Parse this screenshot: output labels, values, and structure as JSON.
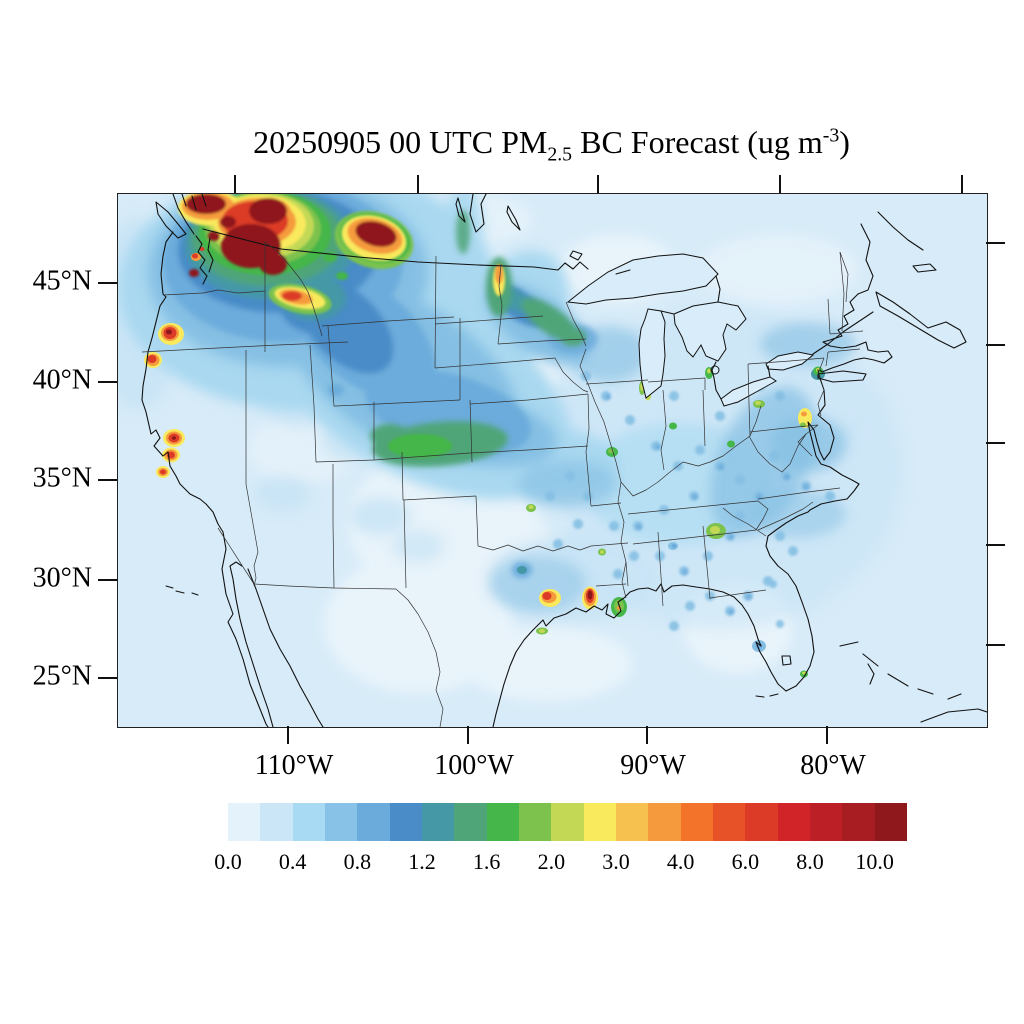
{
  "title": {
    "prefix": "20250905 00 UTC PM",
    "subscript": "2.5",
    "middle": " BC Forecast (ug m",
    "superscript": "-3",
    "suffix": ")"
  },
  "map": {
    "y_axis": {
      "labels": [
        "45°N",
        "40°N",
        "35°N",
        "30°N",
        "25°N"
      ],
      "left_tick_y": [
        283,
        382,
        480,
        580,
        678
      ],
      "right_tick_y": [
        243,
        345,
        443,
        545,
        645
      ]
    },
    "x_axis": {
      "labels": [
        "110°W",
        "100°W",
        "90°W",
        "80°W"
      ],
      "bottom_tick_x": [
        288,
        468,
        647,
        827
      ],
      "top_tick_x": [
        235,
        418,
        598,
        780,
        962
      ]
    }
  },
  "colorbar": {
    "labels": [
      "0.0",
      "0.4",
      "0.8",
      "1.2",
      "1.6",
      "2.0",
      "3.0",
      "4.0",
      "6.0",
      "8.0",
      "10.0"
    ],
    "label_boundary_index": [
      0,
      2,
      4,
      6,
      8,
      10,
      12,
      14,
      16,
      18,
      20
    ],
    "colors": [
      "#E4F2FB",
      "#CBE7F7",
      "#A8DBF3",
      "#88C2E7",
      "#6BABDB",
      "#4A8CC8",
      "#4598A6",
      "#4FA578",
      "#45B64A",
      "#7CC24D",
      "#C3D956",
      "#F9E95D",
      "#F7C150",
      "#F59B3D",
      "#F4732B",
      "#E85229",
      "#DC3B27",
      "#D02428",
      "#BC2026",
      "#A81D22",
      "#8E181C"
    ]
  },
  "chart_data": {
    "type": "heatmap",
    "subtype": "filled_contour_forecast_map",
    "title": "20250905 00 UTC PM2.5 BC Forecast (ug m-3)",
    "variable": "PM2.5 black carbon (BC) surface concentration",
    "units": "ug m-3",
    "forecast_time": "20250905 00 UTC",
    "region": "Contiguous United States with coastlines and state borders",
    "x_tick_labels": [
      "110°W",
      "100°W",
      "90°W",
      "80°W"
    ],
    "y_tick_labels": [
      "45°N",
      "40°N",
      "35°N",
      "30°N",
      "25°N"
    ],
    "contour_levels": [
      0.0,
      0.2,
      0.4,
      0.6,
      0.8,
      1.0,
      1.2,
      1.4,
      1.6,
      1.8,
      2.0,
      2.5,
      3.0,
      3.5,
      4.0,
      5.0,
      6.0,
      7.0,
      8.0,
      9.0,
      10.0
    ],
    "colorbar_labels": [
      "0.0",
      "0.4",
      "0.8",
      "1.2",
      "1.6",
      "2.0",
      "3.0",
      "4.0",
      "6.0",
      "8.0",
      "10.0"
    ],
    "palette": [
      "#E4F2FB",
      "#CBE7F7",
      "#A8DBF3",
      "#88C2E7",
      "#6BABDB",
      "#4A8CC8",
      "#4598A6",
      "#4FA578",
      "#45B64A",
      "#7CC24D",
      "#C3D956",
      "#F9E95D",
      "#F7C150",
      "#F59B3D",
      "#F4732B",
      "#E85229",
      "#DC3B27",
      "#D02428",
      "#BC2026",
      "#A81D22",
      "#8E181C"
    ],
    "background_value": "0.0-0.4 over oceans and most low-concentration land",
    "features": [
      {
        "area": "Washington / Idaho panhandle / western Montana",
        "description": "large wildfire smoke complex with multiple dark-red cores",
        "peak_value": ">10"
      },
      {
        "area": "southwest Oregon",
        "description": "isolated fire hotspot",
        "peak_value": ">10"
      },
      {
        "area": "northern California",
        "description": "isolated fire hotspot",
        "peak_value": ">10"
      },
      {
        "area": "Sierra Nevada, California",
        "description": "three small fire hotspots with yellow-orange rings",
        "peak_value": "8-10"
      },
      {
        "area": "central Idaho",
        "description": "yellow-orange-red streak",
        "peak_value": "6-8"
      },
      {
        "area": "eastern North Dakota into Minnesota",
        "description": "narrow smoke plume streak, orange core with green envelope",
        "peak_value": "4-5"
      },
      {
        "area": "Kansas / eastern Colorado",
        "description": "green smoke-drift ridge",
        "peak_value": "1.6-2.0"
      },
      {
        "area": "Idaho to Wyoming to Nebraska to Iowa",
        "description": "broad blue smoke drift band",
        "peak_value": "1.0-1.4"
      },
      {
        "area": "east Texas gulf coast",
        "description": "industrial/fire hotspot",
        "peak_value": "6-8"
      },
      {
        "area": "Louisiana / Mississippi border near coast",
        "description": "hotspot with dark red core",
        "peak_value": ">10"
      },
      {
        "area": "New Orleans area",
        "description": "green patch with orange dot",
        "peak_value": "2-4"
      },
      {
        "area": "Baltimore / Washington DC",
        "description": "yellow urban spot with orange core",
        "peak_value": "3-4"
      },
      {
        "area": "New York City",
        "description": "green urban spot",
        "peak_value": "2"
      },
      {
        "area": "Pittsburgh",
        "description": "yellow-green spot",
        "peak_value": "2.5"
      },
      {
        "area": "Detroit",
        "description": "green-yellow spot",
        "peak_value": "2.5"
      },
      {
        "area": "Milwaukee",
        "description": "yellow-green sliver on Lake Michigan shore",
        "peak_value": "2.5"
      },
      {
        "area": "Chicago",
        "description": "small yellow-green spot",
        "peak_value": "2.5"
      },
      {
        "area": "St. Louis",
        "description": "green spot",
        "peak_value": "2"
      },
      {
        "area": "Indianapolis",
        "description": "small green spot",
        "peak_value": "1.8"
      },
      {
        "area": "Cincinnati / Louisville",
        "description": "small green spots",
        "peak_value": "1.8"
      },
      {
        "area": "Atlanta",
        "description": "green spot with yellow-green core",
        "peak_value": "2.5"
      },
      {
        "area": "Miami",
        "description": "small green spot",
        "peak_value": "2"
      },
      {
        "area": "Dallas",
        "description": "blue-teal spot",
        "peak_value": "1.2-1.4"
      },
      {
        "area": "Oklahoma City area",
        "description": "small yellow-green dot",
        "peak_value": "2"
      },
      {
        "area": "eastern US",
        "description": "scattered light/medium blue speckles over Ohio valley, Appalachia, Southeast",
        "peak_value": "0.6-1.0"
      }
    ]
  }
}
